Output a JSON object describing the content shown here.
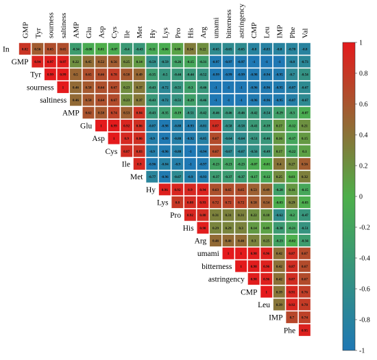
{
  "chart_data": {
    "type": "heatmap",
    "title": "",
    "layout": "upper-triangle",
    "column_labels": [
      "GMP",
      "Tyr",
      "sourness",
      "saltiness",
      "AMP",
      "Glu",
      "Asp",
      "Cys",
      "Ile",
      "Met",
      "Hy",
      "Lys",
      "Pro",
      "His",
      "Arg",
      "umami",
      "bitterness",
      "astringency",
      "CMP",
      "Leu",
      "IMP",
      "Phe",
      "Val"
    ],
    "row_labels": [
      "In",
      "GMP",
      "Tyr",
      "sourness",
      "saltiness",
      "AMP",
      "Glu",
      "Asp",
      "Cys",
      "Ile",
      "Met",
      "Hy",
      "Lys",
      "Pro",
      "His",
      "Arg",
      "umami",
      "bitterness",
      "astringency",
      "CMP",
      "Leu",
      "IMP",
      "Phe"
    ],
    "matrix": [
      [
        0.82,
        0.56,
        0.65,
        0.65,
        -0.34,
        -0.08,
        0.01,
        -0.07,
        -0.4,
        -0.43,
        -0.11,
        -0.06,
        0.08,
        0.34,
        0.22,
        -0.65,
        -0.65,
        -0.65,
        -0.8,
        -0.83,
        -0.8,
        -0.78,
        -0.8
      ],
      [
        null,
        0.94,
        0.97,
        0.97,
        0.22,
        0.45,
        0.52,
        0.56,
        0.25,
        0.14,
        -0.59,
        -0.59,
        -0.26,
        -0.15,
        -0.31,
        -0.97,
        -0.97,
        -0.97,
        -1,
        -1,
        -1,
        -0.8,
        -0.73
      ],
      [
        null,
        null,
        0.99,
        0.99,
        0.5,
        0.65,
        0.66,
        0.78,
        0.58,
        0.49,
        -0.35,
        -0.5,
        -0.44,
        -0.44,
        -0.52,
        -0.99,
        -0.99,
        -0.99,
        -0.98,
        -0.94,
        -0.95,
        -0.7,
        -0.54
      ],
      [
        null,
        null,
        null,
        1,
        0.46,
        0.58,
        0.64,
        0.67,
        0.23,
        0.37,
        -0.43,
        -0.72,
        -0.51,
        -0.3,
        -0.46,
        -1,
        -1,
        -1,
        -0.96,
        -0.96,
        -0.95,
        -0.87,
        -0.67
      ],
      [
        null,
        null,
        null,
        null,
        0.46,
        0.58,
        0.64,
        0.67,
        0.23,
        0.37,
        -0.43,
        -0.72,
        -0.51,
        -0.29,
        -0.46,
        -1,
        -1,
        -1,
        -0.96,
        -0.96,
        -0.95,
        -0.87,
        -0.67
      ],
      [
        null,
        null,
        null,
        null,
        null,
        0.62,
        0.58,
        0.74,
        0.53,
        0.84,
        -0.43,
        -0.35,
        -0.19,
        -0.51,
        -0.42,
        -0.46,
        -0.46,
        -0.46,
        -0.42,
        -0.54,
        -0.29,
        -0.3,
        -0.07
      ],
      [
        null,
        null,
        null,
        null,
        null,
        null,
        1,
        0.99,
        0.92,
        0.86,
        -0.87,
        -0.98,
        -0.88,
        -0.93,
        -0.81,
        0.87,
        -0.58,
        -0.58,
        -0.41,
        -0.39,
        0.17,
        -0.12,
        0.21
      ],
      [
        null,
        null,
        null,
        null,
        null,
        null,
        null,
        1,
        0.9,
        0.86,
        -0.9,
        -0.99,
        -0.88,
        -0.92,
        -0.85,
        0.67,
        -0.64,
        -0.64,
        -0.51,
        -0.46,
        0.16,
        -0.17,
        0.15
      ],
      [
        null,
        null,
        null,
        null,
        null,
        null,
        null,
        null,
        0.87,
        0.83,
        -0.9,
        -0.96,
        -0.88,
        -1,
        -0.94,
        0.67,
        -0.67,
        -0.67,
        -0.56,
        -0.49,
        0.17,
        -0.22,
        0.1
      ],
      [
        null,
        null,
        null,
        null,
        null,
        null,
        null,
        null,
        null,
        0.9,
        -0.96,
        -0.84,
        -0.9,
        -1,
        -0.97,
        -0.23,
        -0.23,
        -0.23,
        -0.07,
        -0.01,
        0.4,
        0.27,
        0.56
      ],
      [
        null,
        null,
        null,
        null,
        null,
        null,
        null,
        null,
        null,
        null,
        -0.77,
        -0.96,
        -0.67,
        -0.9,
        -0.93,
        -0.37,
        -0.37,
        -0.37,
        -0.17,
        -0.12,
        0.25,
        0.03,
        0.32
      ],
      [
        null,
        null,
        null,
        null,
        null,
        null,
        null,
        null,
        null,
        null,
        null,
        0.96,
        0.92,
        0.9,
        0.94,
        0.63,
        0.65,
        0.65,
        0.53,
        0.49,
        -0.28,
        0.16,
        -0.15
      ],
      [
        null,
        null,
        null,
        null,
        null,
        null,
        null,
        null,
        null,
        null,
        null,
        null,
        0.8,
        0.88,
        0.93,
        0.72,
        0.72,
        0.72,
        0.58,
        0.54,
        -0.03,
        0.29,
        -0.03
      ],
      [
        null,
        null,
        null,
        null,
        null,
        null,
        null,
        null,
        null,
        null,
        null,
        null,
        null,
        0.92,
        0.88,
        0.31,
        0.31,
        0.31,
        0.22,
        0.18,
        -0.62,
        -0.2,
        -0.47
      ],
      [
        null,
        null,
        null,
        null,
        null,
        null,
        null,
        null,
        null,
        null,
        null,
        null,
        null,
        null,
        0.98,
        0.29,
        0.29,
        0.3,
        0.14,
        0.09,
        -0.38,
        -0.21,
        -0.51
      ],
      [
        null,
        null,
        null,
        null,
        null,
        null,
        null,
        null,
        null,
        null,
        null,
        null,
        null,
        null,
        null,
        0.46,
        0.46,
        0.46,
        0.3,
        0.25,
        -0.23,
        -0.02,
        -0.34
      ],
      [
        null,
        null,
        null,
        null,
        null,
        null,
        null,
        null,
        null,
        null,
        null,
        null,
        null,
        null,
        null,
        null,
        1,
        1,
        0.98,
        0.96,
        0.42,
        0.87,
        0.67
      ],
      [
        null,
        null,
        null,
        null,
        null,
        null,
        null,
        null,
        null,
        null,
        null,
        null,
        null,
        null,
        null,
        null,
        null,
        1,
        0.98,
        0.96,
        0.42,
        0.87,
        0.67
      ],
      [
        null,
        null,
        null,
        null,
        null,
        null,
        null,
        null,
        null,
        null,
        null,
        null,
        null,
        null,
        null,
        null,
        null,
        null,
        0.98,
        0.96,
        0.42,
        0.87,
        0.67
      ],
      [
        null,
        null,
        null,
        null,
        null,
        null,
        null,
        null,
        null,
        null,
        null,
        null,
        null,
        null,
        null,
        null,
        null,
        null,
        null,
        1,
        0.39,
        0.91,
        0.76
      ],
      [
        null,
        null,
        null,
        null,
        null,
        null,
        null,
        null,
        null,
        null,
        null,
        null,
        null,
        null,
        null,
        null,
        null,
        null,
        null,
        null,
        0.39,
        0.92,
        0.78
      ],
      [
        null,
        null,
        null,
        null,
        null,
        null,
        null,
        null,
        null,
        null,
        null,
        null,
        null,
        null,
        null,
        null,
        null,
        null,
        null,
        null,
        null,
        0.7,
        0.74
      ],
      [
        null,
        null,
        null,
        null,
        null,
        null,
        null,
        null,
        null,
        null,
        null,
        null,
        null,
        null,
        null,
        null,
        null,
        null,
        null,
        null,
        null,
        null,
        0.95
      ]
    ],
    "color_scale": {
      "min": -1,
      "max": 1,
      "stops": [
        {
          "value": -1,
          "color": "#1f78b4"
        },
        {
          "value": 0,
          "color": "#4daf4a"
        },
        {
          "value": 1,
          "color": "#e41a1c"
        }
      ],
      "ticks": [
        -1,
        -0.8,
        -0.6,
        -0.4,
        -0.2,
        0,
        0.2,
        0.4,
        0.6,
        0.8,
        1
      ]
    },
    "legend_position": "right",
    "grid": false
  }
}
